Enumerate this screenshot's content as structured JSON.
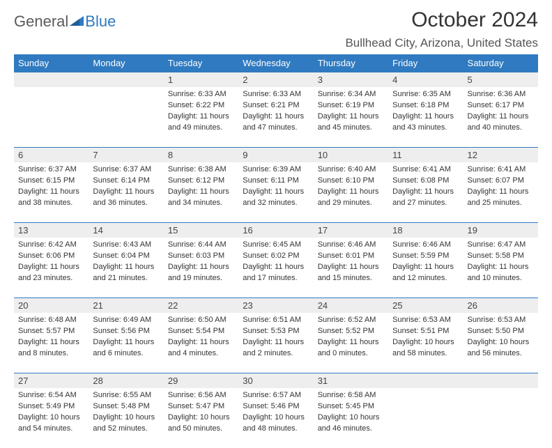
{
  "brand": {
    "part1": "General",
    "part2": "Blue"
  },
  "title": "October 2024",
  "location": "Bullhead City, Arizona, United States",
  "colors": {
    "accent": "#2f7ac0",
    "header_bg": "#eeeeee",
    "text": "#333333"
  },
  "weekdays": [
    "Sunday",
    "Monday",
    "Tuesday",
    "Wednesday",
    "Thursday",
    "Friday",
    "Saturday"
  ],
  "weeks": [
    [
      null,
      null,
      {
        "n": "1",
        "sr": "Sunrise: 6:33 AM",
        "ss": "Sunset: 6:22 PM",
        "d1": "Daylight: 11 hours",
        "d2": "and 49 minutes."
      },
      {
        "n": "2",
        "sr": "Sunrise: 6:33 AM",
        "ss": "Sunset: 6:21 PM",
        "d1": "Daylight: 11 hours",
        "d2": "and 47 minutes."
      },
      {
        "n": "3",
        "sr": "Sunrise: 6:34 AM",
        "ss": "Sunset: 6:19 PM",
        "d1": "Daylight: 11 hours",
        "d2": "and 45 minutes."
      },
      {
        "n": "4",
        "sr": "Sunrise: 6:35 AM",
        "ss": "Sunset: 6:18 PM",
        "d1": "Daylight: 11 hours",
        "d2": "and 43 minutes."
      },
      {
        "n": "5",
        "sr": "Sunrise: 6:36 AM",
        "ss": "Sunset: 6:17 PM",
        "d1": "Daylight: 11 hours",
        "d2": "and 40 minutes."
      }
    ],
    [
      {
        "n": "6",
        "sr": "Sunrise: 6:37 AM",
        "ss": "Sunset: 6:15 PM",
        "d1": "Daylight: 11 hours",
        "d2": "and 38 minutes."
      },
      {
        "n": "7",
        "sr": "Sunrise: 6:37 AM",
        "ss": "Sunset: 6:14 PM",
        "d1": "Daylight: 11 hours",
        "d2": "and 36 minutes."
      },
      {
        "n": "8",
        "sr": "Sunrise: 6:38 AM",
        "ss": "Sunset: 6:12 PM",
        "d1": "Daylight: 11 hours",
        "d2": "and 34 minutes."
      },
      {
        "n": "9",
        "sr": "Sunrise: 6:39 AM",
        "ss": "Sunset: 6:11 PM",
        "d1": "Daylight: 11 hours",
        "d2": "and 32 minutes."
      },
      {
        "n": "10",
        "sr": "Sunrise: 6:40 AM",
        "ss": "Sunset: 6:10 PM",
        "d1": "Daylight: 11 hours",
        "d2": "and 29 minutes."
      },
      {
        "n": "11",
        "sr": "Sunrise: 6:41 AM",
        "ss": "Sunset: 6:08 PM",
        "d1": "Daylight: 11 hours",
        "d2": "and 27 minutes."
      },
      {
        "n": "12",
        "sr": "Sunrise: 6:41 AM",
        "ss": "Sunset: 6:07 PM",
        "d1": "Daylight: 11 hours",
        "d2": "and 25 minutes."
      }
    ],
    [
      {
        "n": "13",
        "sr": "Sunrise: 6:42 AM",
        "ss": "Sunset: 6:06 PM",
        "d1": "Daylight: 11 hours",
        "d2": "and 23 minutes."
      },
      {
        "n": "14",
        "sr": "Sunrise: 6:43 AM",
        "ss": "Sunset: 6:04 PM",
        "d1": "Daylight: 11 hours",
        "d2": "and 21 minutes."
      },
      {
        "n": "15",
        "sr": "Sunrise: 6:44 AM",
        "ss": "Sunset: 6:03 PM",
        "d1": "Daylight: 11 hours",
        "d2": "and 19 minutes."
      },
      {
        "n": "16",
        "sr": "Sunrise: 6:45 AM",
        "ss": "Sunset: 6:02 PM",
        "d1": "Daylight: 11 hours",
        "d2": "and 17 minutes."
      },
      {
        "n": "17",
        "sr": "Sunrise: 6:46 AM",
        "ss": "Sunset: 6:01 PM",
        "d1": "Daylight: 11 hours",
        "d2": "and 15 minutes."
      },
      {
        "n": "18",
        "sr": "Sunrise: 6:46 AM",
        "ss": "Sunset: 5:59 PM",
        "d1": "Daylight: 11 hours",
        "d2": "and 12 minutes."
      },
      {
        "n": "19",
        "sr": "Sunrise: 6:47 AM",
        "ss": "Sunset: 5:58 PM",
        "d1": "Daylight: 11 hours",
        "d2": "and 10 minutes."
      }
    ],
    [
      {
        "n": "20",
        "sr": "Sunrise: 6:48 AM",
        "ss": "Sunset: 5:57 PM",
        "d1": "Daylight: 11 hours",
        "d2": "and 8 minutes."
      },
      {
        "n": "21",
        "sr": "Sunrise: 6:49 AM",
        "ss": "Sunset: 5:56 PM",
        "d1": "Daylight: 11 hours",
        "d2": "and 6 minutes."
      },
      {
        "n": "22",
        "sr": "Sunrise: 6:50 AM",
        "ss": "Sunset: 5:54 PM",
        "d1": "Daylight: 11 hours",
        "d2": "and 4 minutes."
      },
      {
        "n": "23",
        "sr": "Sunrise: 6:51 AM",
        "ss": "Sunset: 5:53 PM",
        "d1": "Daylight: 11 hours",
        "d2": "and 2 minutes."
      },
      {
        "n": "24",
        "sr": "Sunrise: 6:52 AM",
        "ss": "Sunset: 5:52 PM",
        "d1": "Daylight: 11 hours",
        "d2": "and 0 minutes."
      },
      {
        "n": "25",
        "sr": "Sunrise: 6:53 AM",
        "ss": "Sunset: 5:51 PM",
        "d1": "Daylight: 10 hours",
        "d2": "and 58 minutes."
      },
      {
        "n": "26",
        "sr": "Sunrise: 6:53 AM",
        "ss": "Sunset: 5:50 PM",
        "d1": "Daylight: 10 hours",
        "d2": "and 56 minutes."
      }
    ],
    [
      {
        "n": "27",
        "sr": "Sunrise: 6:54 AM",
        "ss": "Sunset: 5:49 PM",
        "d1": "Daylight: 10 hours",
        "d2": "and 54 minutes."
      },
      {
        "n": "28",
        "sr": "Sunrise: 6:55 AM",
        "ss": "Sunset: 5:48 PM",
        "d1": "Daylight: 10 hours",
        "d2": "and 52 minutes."
      },
      {
        "n": "29",
        "sr": "Sunrise: 6:56 AM",
        "ss": "Sunset: 5:47 PM",
        "d1": "Daylight: 10 hours",
        "d2": "and 50 minutes."
      },
      {
        "n": "30",
        "sr": "Sunrise: 6:57 AM",
        "ss": "Sunset: 5:46 PM",
        "d1": "Daylight: 10 hours",
        "d2": "and 48 minutes."
      },
      {
        "n": "31",
        "sr": "Sunrise: 6:58 AM",
        "ss": "Sunset: 5:45 PM",
        "d1": "Daylight: 10 hours",
        "d2": "and 46 minutes."
      },
      null,
      null
    ]
  ]
}
